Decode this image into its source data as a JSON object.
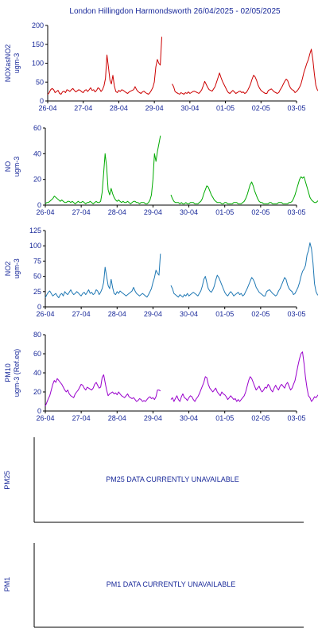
{
  "page": {
    "title": "London Hillingdon Harmondsworth  26/04/2025 - 02/05/2025"
  },
  "colors": {
    "axis": "#1a2a9a",
    "nox": "#cc0000",
    "no": "#00aa00",
    "no2": "#1f78b4",
    "pm10": "#9900cc"
  },
  "chart_data": [
    {
      "type": "line",
      "ylabel": "NOXasNO2\nugm-3",
      "ylim": [
        0,
        200
      ],
      "yticks": [
        0,
        50,
        100,
        150,
        200
      ],
      "x_range": [
        "26-04",
        "03-05"
      ],
      "x_ticks": [
        "26-04",
        "27-04",
        "28-04",
        "29-04",
        "30-04",
        "01-05",
        "02-05",
        "03-05"
      ],
      "grid": false,
      "series": [
        {
          "color_key": "nox",
          "values": [
            17,
            22,
            30,
            33,
            30,
            22,
            25,
            28,
            20,
            18,
            24,
            26,
            22,
            30,
            28,
            25,
            30,
            33,
            28,
            24,
            27,
            30,
            28,
            24,
            22,
            28,
            30,
            25,
            30,
            35,
            28,
            30,
            24,
            28,
            35,
            32,
            25,
            30,
            40,
            60,
            122,
            90,
            55,
            45,
            68,
            40,
            25,
            22,
            28,
            25,
            30,
            28,
            25,
            22,
            20,
            24,
            26,
            28,
            30,
            38,
            30,
            25,
            22,
            20,
            24,
            26,
            22,
            20,
            18,
            22,
            28,
            36,
            50,
            90,
            110,
            100,
            95,
            170,
            null,
            null,
            null,
            null,
            null,
            null,
            45,
            38,
            25,
            22,
            20,
            18,
            22,
            20,
            18,
            22,
            20,
            24,
            20,
            22,
            25,
            26,
            24,
            22,
            20,
            24,
            30,
            40,
            52,
            44,
            36,
            30,
            28,
            26,
            32,
            38,
            50,
            62,
            74,
            62,
            52,
            44,
            36,
            28,
            22,
            20,
            24,
            28,
            24,
            20,
            22,
            25,
            26,
            22,
            24,
            20,
            22,
            28,
            36,
            45,
            58,
            68,
            64,
            55,
            42,
            34,
            28,
            25,
            22,
            20,
            20,
            28,
            30,
            32,
            28,
            24,
            22,
            20,
            22,
            30,
            36,
            44,
            52,
            58,
            54,
            42,
            34,
            30,
            28,
            22,
            25,
            30,
            36,
            45,
            60,
            76,
            88,
            100,
            110,
            125,
            137,
            110,
            72,
            42,
            30,
            25,
            22,
            28,
            35,
            44,
            48,
            44,
            38,
            32,
            26,
            24,
            22,
            22,
            24,
            22,
            22,
            25,
            30,
            35,
            38
          ]
        }
      ]
    },
    {
      "type": "line",
      "ylabel": "NO\nugm-3",
      "ylim": [
        0,
        60
      ],
      "yticks": [
        0,
        20,
        40,
        60
      ],
      "x_range": [
        "26-04",
        "03-05"
      ],
      "x_ticks": [
        "26-04",
        "27-04",
        "28-04",
        "29-04",
        "30-04",
        "01-05",
        "02-05",
        "03-05"
      ],
      "grid": false,
      "series": [
        {
          "color_key": "no",
          "values": [
            1,
            2,
            2,
            3,
            4,
            5,
            7,
            6,
            5,
            4,
            3,
            4,
            3,
            2,
            2,
            3,
            3,
            2,
            3,
            2,
            1,
            2,
            3,
            2,
            2,
            3,
            2,
            1,
            2,
            2,
            3,
            2,
            1,
            2,
            3,
            2,
            2,
            3,
            10,
            25,
            40,
            30,
            12,
            8,
            13,
            9,
            6,
            4,
            3,
            4,
            3,
            2,
            3,
            2,
            2,
            3,
            2,
            1,
            2,
            3,
            3,
            2,
            2,
            1,
            2,
            2,
            2,
            1,
            1,
            2,
            4,
            8,
            20,
            40,
            34,
            42,
            48,
            54,
            null,
            null,
            null,
            null,
            null,
            null,
            8,
            5,
            3,
            2,
            2,
            2,
            1,
            2,
            1,
            1,
            2,
            1,
            1,
            2,
            2,
            2,
            1,
            1,
            1,
            2,
            3,
            5,
            9,
            12,
            15,
            14,
            11,
            8,
            6,
            4,
            3,
            2,
            2,
            2,
            1,
            1,
            2,
            2,
            1,
            1,
            1,
            1,
            2,
            2,
            2,
            1,
            1,
            1,
            2,
            3,
            5,
            8,
            12,
            16,
            18,
            15,
            11,
            8,
            5,
            3,
            2,
            2,
            1,
            1,
            1,
            1,
            2,
            2,
            1,
            1,
            1,
            1,
            2,
            2,
            2,
            1,
            1,
            1,
            1,
            2,
            2,
            3,
            5,
            8,
            12,
            16,
            20,
            22,
            21,
            22,
            18,
            14,
            10,
            6,
            4,
            3,
            2,
            2,
            3,
            4,
            5,
            4,
            3,
            2,
            2,
            1,
            1,
            1,
            2,
            1,
            1,
            1,
            1,
            2,
            2,
            3,
            3
          ]
        }
      ]
    },
    {
      "type": "line",
      "ylabel": "NO2\nugm-3",
      "ylim": [
        0,
        125
      ],
      "yticks": [
        0,
        25,
        50,
        75,
        100,
        125
      ],
      "x_range": [
        "26-04",
        "03-05"
      ],
      "x_ticks": [
        "26-04",
        "27-04",
        "28-04",
        "29-04",
        "30-04",
        "01-05",
        "02-05",
        "03-05"
      ],
      "grid": false,
      "series": [
        {
          "color_key": "no2",
          "values": [
            15,
            20,
            24,
            26,
            22,
            18,
            20,
            22,
            18,
            15,
            20,
            22,
            18,
            25,
            22,
            20,
            24,
            28,
            23,
            20,
            22,
            25,
            23,
            20,
            18,
            22,
            24,
            20,
            24,
            28,
            22,
            24,
            20,
            22,
            28,
            26,
            20,
            24,
            30,
            40,
            65,
            50,
            35,
            30,
            45,
            32,
            22,
            20,
            25,
            22,
            26,
            24,
            22,
            20,
            18,
            20,
            22,
            24,
            26,
            32,
            26,
            22,
            20,
            18,
            20,
            22,
            20,
            18,
            16,
            20,
            25,
            30,
            40,
            48,
            60,
            55,
            52,
            87,
            null,
            null,
            null,
            null,
            null,
            null,
            35,
            30,
            22,
            20,
            18,
            16,
            20,
            18,
            16,
            20,
            18,
            22,
            18,
            20,
            22,
            24,
            22,
            20,
            18,
            22,
            26,
            34,
            45,
            50,
            40,
            30,
            26,
            24,
            28,
            34,
            44,
            52,
            48,
            42,
            36,
            30,
            24,
            20,
            18,
            22,
            25,
            22,
            18,
            20,
            22,
            24,
            20,
            22,
            18,
            20,
            25,
            30,
            36,
            42,
            48,
            45,
            40,
            32,
            28,
            24,
            22,
            20,
            18,
            18,
            25,
            27,
            28,
            25,
            22,
            20,
            18,
            20,
            26,
            30,
            36,
            42,
            48,
            45,
            36,
            30,
            27,
            25,
            20,
            22,
            27,
            32,
            40,
            50,
            58,
            62,
            68,
            85,
            92,
            105,
            95,
            72,
            38,
            25,
            20,
            18,
            24,
            30,
            38,
            42,
            40,
            34,
            28,
            24,
            22,
            20,
            20,
            22,
            20,
            20,
            22,
            26,
            30,
            33,
            35
          ]
        }
      ]
    },
    {
      "type": "line",
      "ylabel": "PM10\nugm-3 (Ref.eq)",
      "ylim": [
        0,
        80
      ],
      "yticks": [
        0,
        20,
        40,
        60,
        80
      ],
      "x_range": [
        "26-04",
        "03-05"
      ],
      "x_ticks": [
        "26-04",
        "27-04",
        "28-04",
        "29-04",
        "30-04",
        "01-05",
        "02-05",
        "03-05"
      ],
      "grid": false,
      "series": [
        {
          "color_key": "pm10",
          "values": [
            5,
            9,
            13,
            16,
            22,
            28,
            32,
            30,
            34,
            32,
            30,
            28,
            25,
            22,
            20,
            22,
            18,
            16,
            15,
            14,
            18,
            20,
            22,
            25,
            28,
            27,
            24,
            22,
            25,
            24,
            23,
            22,
            24,
            28,
            30,
            27,
            24,
            25,
            35,
            38,
            30,
            22,
            16,
            18,
            19,
            20,
            18,
            19,
            17,
            20,
            18,
            16,
            15,
            14,
            16,
            18,
            15,
            14,
            13,
            14,
            12,
            10,
            11,
            13,
            12,
            10,
            11,
            10,
            12,
            14,
            15,
            13,
            14,
            12,
            15,
            22,
            22,
            21,
            null,
            null,
            null,
            null,
            null,
            null,
            12,
            14,
            10,
            13,
            16,
            12,
            10,
            15,
            18,
            14,
            13,
            11,
            14,
            16,
            15,
            12,
            10,
            13,
            15,
            18,
            22,
            26,
            30,
            36,
            35,
            28,
            24,
            22,
            20,
            22,
            24,
            20,
            18,
            16,
            20,
            18,
            17,
            15,
            12,
            14,
            16,
            14,
            12,
            13,
            10,
            12,
            10,
            12,
            14,
            16,
            20,
            26,
            32,
            36,
            34,
            30,
            26,
            22,
            24,
            26,
            22,
            20,
            22,
            25,
            24,
            28,
            26,
            22,
            20,
            24,
            27,
            24,
            22,
            26,
            28,
            26,
            24,
            28,
            30,
            26,
            22,
            24,
            28,
            32,
            40,
            48,
            55,
            60,
            62,
            50,
            35,
            24,
            16,
            14,
            10,
            12,
            15,
            14,
            16,
            18,
            14,
            20,
            22,
            18,
            20,
            16,
            18,
            22,
            26,
            20,
            18,
            22,
            20,
            18,
            20,
            22
          ]
        }
      ]
    }
  ],
  "unavailable": [
    {
      "label": "PM25",
      "message": "PM25 DATA CURRENTLY UNAVAILABLE"
    },
    {
      "label": "PM1",
      "message": "PM1 DATA CURRENTLY UNAVAILABLE"
    }
  ]
}
